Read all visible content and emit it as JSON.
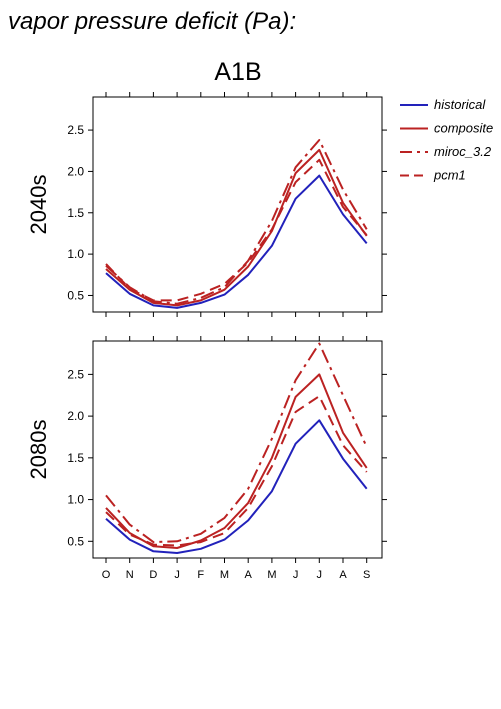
{
  "figure": {
    "title": "vapor pressure deficit (Pa):",
    "scenario": "A1B"
  },
  "legend": [
    {
      "label": "historical",
      "color": "#2222bb",
      "dash": "solid"
    },
    {
      "label": "composite",
      "color": "#bb2222",
      "dash": "solid"
    },
    {
      "label": "miroc_3.2",
      "color": "#bb2222",
      "dash": "dashdot"
    },
    {
      "label": "pcm1",
      "color": "#bb2222",
      "dash": "dashed"
    }
  ],
  "chart_data": [
    {
      "type": "line",
      "panel_label": "2040s",
      "categories": [
        "O",
        "N",
        "D",
        "J",
        "F",
        "M",
        "A",
        "M",
        "J",
        "J",
        "A",
        "S"
      ],
      "yticks": [
        0.5,
        1.0,
        1.5,
        2.0,
        2.5
      ],
      "ylim": [
        0.3,
        2.9
      ],
      "grid": false,
      "legend_position": "right",
      "series": [
        {
          "name": "historical",
          "values": [
            0.77,
            0.52,
            0.38,
            0.35,
            0.41,
            0.51,
            0.75,
            1.1,
            1.67,
            1.95,
            1.48,
            1.13
          ]
        },
        {
          "name": "composite",
          "values": [
            0.82,
            0.57,
            0.41,
            0.38,
            0.44,
            0.57,
            0.85,
            1.28,
            1.98,
            2.26,
            1.62,
            1.22
          ]
        },
        {
          "name": "miroc_3.2",
          "values": [
            0.86,
            0.6,
            0.43,
            0.4,
            0.47,
            0.6,
            0.92,
            1.4,
            2.05,
            2.38,
            1.78,
            1.3
          ]
        },
        {
          "name": "pcm1",
          "values": [
            0.88,
            0.58,
            0.44,
            0.44,
            0.52,
            0.64,
            0.9,
            1.3,
            1.87,
            2.14,
            1.57,
            1.23
          ]
        }
      ]
    },
    {
      "type": "line",
      "panel_label": "2080s",
      "categories": [
        "O",
        "N",
        "D",
        "J",
        "F",
        "M",
        "A",
        "M",
        "J",
        "J",
        "A",
        "S"
      ],
      "yticks": [
        0.5,
        1.0,
        1.5,
        2.0,
        2.5
      ],
      "ylim": [
        0.3,
        2.9
      ],
      "grid": false,
      "legend_position": "right",
      "series": [
        {
          "name": "historical",
          "values": [
            0.77,
            0.52,
            0.38,
            0.36,
            0.41,
            0.52,
            0.75,
            1.1,
            1.67,
            1.95,
            1.49,
            1.13
          ]
        },
        {
          "name": "composite",
          "values": [
            0.9,
            0.6,
            0.44,
            0.42,
            0.51,
            0.66,
            0.96,
            1.5,
            2.23,
            2.5,
            1.8,
            1.38
          ]
        },
        {
          "name": "miroc_3.2",
          "values": [
            1.05,
            0.7,
            0.49,
            0.5,
            0.59,
            0.78,
            1.13,
            1.73,
            2.43,
            2.87,
            2.25,
            1.63
          ]
        },
        {
          "name": "pcm1",
          "values": [
            0.85,
            0.58,
            0.46,
            0.45,
            0.49,
            0.6,
            0.9,
            1.4,
            2.05,
            2.24,
            1.65,
            1.33
          ]
        }
      ]
    }
  ]
}
